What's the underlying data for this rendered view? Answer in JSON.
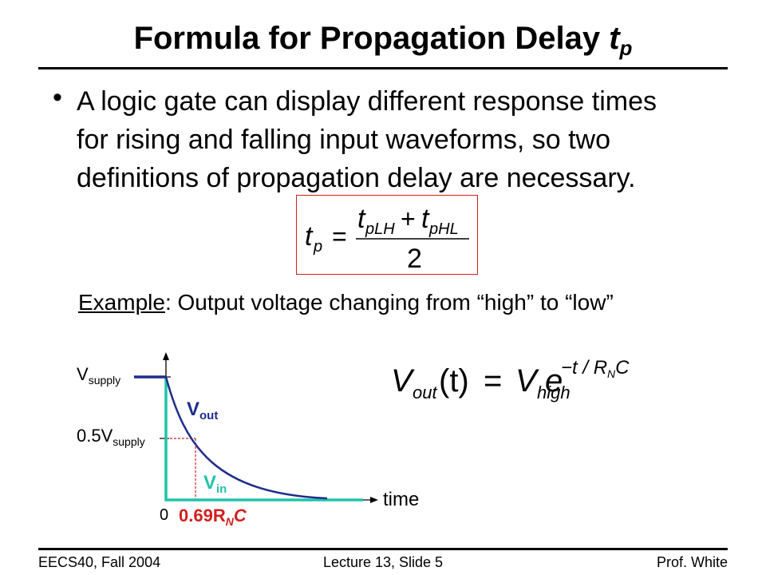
{
  "slide": {
    "title_main": "Formula for Propagation Delay ",
    "title_var": "t",
    "title_sub": "p",
    "bullet_marker": "•",
    "bullet_lines": [
      "A logic gate can display different response times",
      "for rising and falling input waveforms, so two",
      "definitions of propagation delay are necessary."
    ],
    "example_label": "Example",
    "example_text": ":  Output voltage changing from “high” to “low”"
  },
  "formula_tp": {
    "lhs_var": "t",
    "lhs_sub": "p",
    "equals": "=",
    "num_a_var": "t",
    "num_a_sub": "pLH",
    "plus": "+",
    "num_b_var": "t",
    "num_b_sub": "pHL",
    "denominator": "2"
  },
  "formula_vout": {
    "var": "V",
    "var_sub": "out",
    "arg": "(t)",
    "equals": "=",
    "rhs_var": "V",
    "rhs_sub": "high",
    "base": "e",
    "exp": "−t / R",
    "exp_sub": "N",
    "exp_tail": "C"
  },
  "diagram": {
    "y_label_top": "V",
    "y_label_top_sub": "supply",
    "y_label_mid_prefix": "0.5V",
    "y_label_mid_sub": "supply",
    "origin_label": "0",
    "x_axis_label": "time",
    "vout_label": "V",
    "vout_sub": "out",
    "vin_label": "V",
    "vin_sub": "in",
    "delay_label_a": "0.69R",
    "delay_label_sub": "N",
    "delay_label_b": "C",
    "colors": {
      "vout": "#1f2d8a",
      "vin": "#20c4a8",
      "dashed": "#d02020",
      "delay": "#d02020"
    }
  },
  "footer": {
    "left": "EECS40, Fall 2004",
    "center": "Lecture 13, Slide 5",
    "right": "Prof. White"
  }
}
